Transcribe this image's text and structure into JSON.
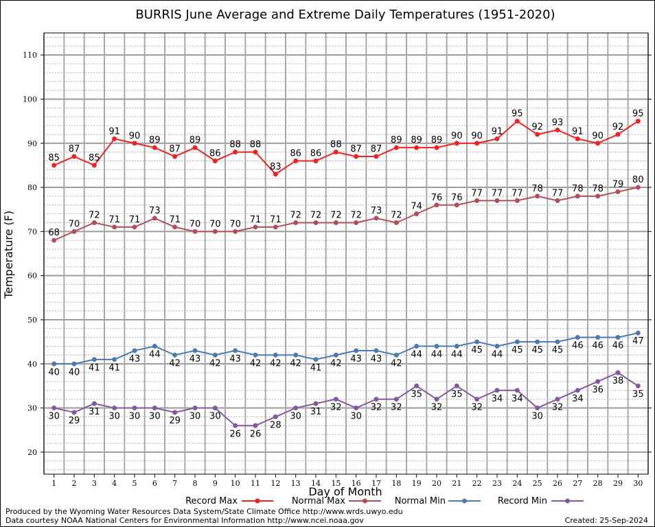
{
  "chart_data": {
    "type": "line",
    "title": "BURRIS June Average and Extreme Daily Temperatures (1951-2020)",
    "xlabel": "Day of Month",
    "ylabel": "Temperature (F)",
    "x": [
      1,
      2,
      3,
      4,
      5,
      6,
      7,
      8,
      9,
      10,
      11,
      12,
      13,
      14,
      15,
      16,
      17,
      18,
      19,
      20,
      21,
      22,
      23,
      24,
      25,
      26,
      27,
      28,
      29,
      30
    ],
    "xlim": [
      0.5,
      30.5
    ],
    "ylim": [
      15,
      115
    ],
    "yticks": [
      20,
      30,
      40,
      50,
      60,
      70,
      80,
      90,
      100,
      110
    ],
    "grid": true,
    "legend_position": "bottom",
    "series": [
      {
        "name": "Record Max",
        "color": "#ee2222",
        "label_pos": "above",
        "values": [
          85,
          87,
          85,
          91,
          90,
          89,
          87,
          89,
          86,
          88,
          88,
          83,
          86,
          86,
          88,
          87,
          87,
          89,
          89,
          89,
          90,
          90,
          91,
          95,
          92,
          93,
          91,
          90,
          92,
          95
        ]
      },
      {
        "name": "Normal Max",
        "color": "#b44d5a",
        "label_pos": "above",
        "values": [
          68,
          70,
          72,
          71,
          71,
          73,
          71,
          70,
          70,
          70,
          71,
          71,
          72,
          72,
          72,
          72,
          73,
          72,
          74,
          76,
          76,
          77,
          77,
          77,
          78,
          77,
          78,
          78,
          79,
          80
        ]
      },
      {
        "name": "Normal Min",
        "color": "#4a7bb0",
        "label_pos": "below",
        "values": [
          40,
          40,
          41,
          41,
          43,
          44,
          42,
          43,
          42,
          43,
          42,
          42,
          42,
          41,
          42,
          43,
          43,
          42,
          44,
          44,
          44,
          45,
          44,
          45,
          45,
          45,
          46,
          46,
          46,
          47
        ]
      },
      {
        "name": "Record Min",
        "color": "#8457a0",
        "label_pos": "below",
        "values": [
          30,
          29,
          31,
          30,
          30,
          30,
          29,
          30,
          30,
          26,
          26,
          28,
          30,
          31,
          32,
          30,
          32,
          32,
          35,
          32,
          35,
          32,
          34,
          34,
          30,
          32,
          34,
          36,
          38,
          35
        ]
      }
    ]
  },
  "footer": {
    "line1": "Produced by the Wyoming Water Resources Data System/State Climate Office http://www.wrds.uwyo.edu",
    "line2": "Data courtesy NOAA National Centers for Environmental Information http://www.ncei.noaa.gov",
    "created": "Created:  25-Sep-2024"
  }
}
